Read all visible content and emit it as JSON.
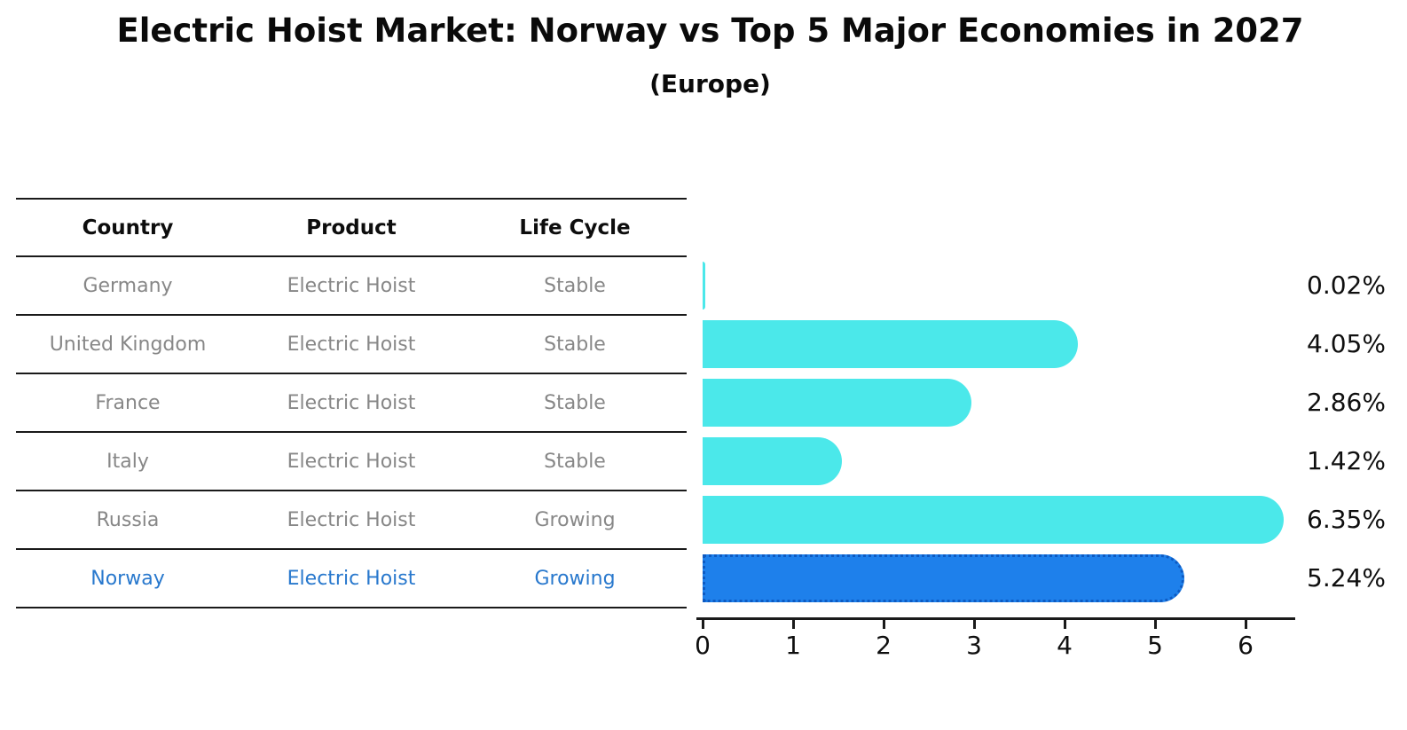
{
  "title": "Electric Hoist Market: Norway vs Top 5 Major Economies in 2027",
  "subtitle": "(Europe)",
  "table": {
    "headers": [
      "Country",
      "Product",
      "Life Cycle"
    ],
    "rows": [
      {
        "country": "Germany",
        "product": "Electric Hoist",
        "life_cycle": "Stable"
      },
      {
        "country": "United Kingdom",
        "product": "Electric Hoist",
        "life_cycle": "Stable"
      },
      {
        "country": "France",
        "product": "Electric Hoist",
        "life_cycle": "Stable"
      },
      {
        "country": "Italy",
        "product": "Electric Hoist",
        "life_cycle": "Stable"
      },
      {
        "country": "Russia",
        "product": "Electric Hoist",
        "life_cycle": "Growing"
      },
      {
        "country": "Norway",
        "product": "Electric Hoist",
        "life_cycle": "Growing"
      }
    ]
  },
  "chart_data": {
    "type": "bar",
    "orientation": "horizontal",
    "title": "Electric Hoist Market: Norway vs Top 5 Major Economies in 2027 (Europe)",
    "categories": [
      "Germany",
      "United Kingdom",
      "France",
      "Italy",
      "Russia",
      "Norway"
    ],
    "values": [
      0.02,
      4.05,
      2.86,
      1.42,
      6.35,
      5.24
    ],
    "labels": [
      "0.02%",
      "4.05%",
      "2.86%",
      "1.42%",
      "6.35%",
      "5.24%"
    ],
    "xlabel": "",
    "ylabel": "",
    "xlim": [
      0,
      6.5
    ],
    "x_ticks": [
      "0",
      "1",
      "2",
      "3",
      "4",
      "5",
      "6"
    ],
    "grid": false,
    "legend": "none",
    "bar_color": "#4BE8EA",
    "highlight_index": 5,
    "highlight_color": "#1E80EB",
    "highlight_border_color": "#0d5ac2",
    "text_color_muted": "#878787",
    "text_color_highlight": "#2878CD"
  }
}
